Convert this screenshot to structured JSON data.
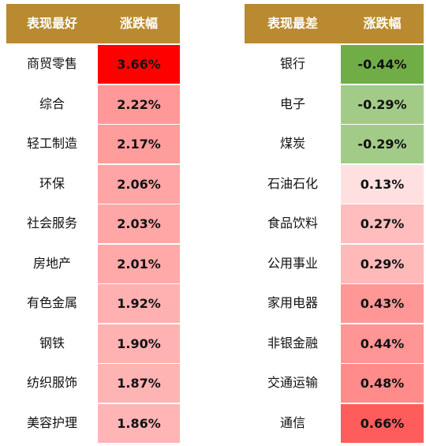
{
  "chart_data": [
    {
      "type": "table",
      "title": "",
      "columns": [
        "表现最好",
        "涨跌幅"
      ],
      "rows": [
        {
          "name": "商贸零售",
          "value": 3.66,
          "label": "3.66%",
          "color": "#ff0000"
        },
        {
          "name": "综合",
          "value": 2.22,
          "label": "2.22%",
          "color": "#ff9999"
        },
        {
          "name": "轻工制造",
          "value": 2.17,
          "label": "2.17%",
          "color": "#ff9c9c"
        },
        {
          "name": "环保",
          "value": 2.06,
          "label": "2.06%",
          "color": "#ffa5a5"
        },
        {
          "name": "社会服务",
          "value": 2.03,
          "label": "2.03%",
          "color": "#ffa7a7"
        },
        {
          "name": "房地产",
          "value": 2.01,
          "label": "2.01%",
          "color": "#ffa9a9"
        },
        {
          "name": "有色金属",
          "value": 1.92,
          "label": "1.92%",
          "color": "#ffb0b0"
        },
        {
          "name": "钢铁",
          "value": 1.9,
          "label": "1.90%",
          "color": "#ffb2b2"
        },
        {
          "name": "纺织服饰",
          "value": 1.87,
          "label": "1.87%",
          "color": "#ffb4b4"
        },
        {
          "name": "美容护理",
          "value": 1.86,
          "label": "1.86%",
          "color": "#ffb5b5"
        }
      ]
    },
    {
      "type": "table",
      "title": "",
      "columns": [
        "表现最差",
        "涨跌幅"
      ],
      "rows": [
        {
          "name": "银行",
          "value": -0.44,
          "label": "-0.44%",
          "color": "#71ad47"
        },
        {
          "name": "电子",
          "value": -0.29,
          "label": "-0.29%",
          "color": "#a2cb88"
        },
        {
          "name": "煤炭",
          "value": -0.29,
          "label": "-0.29%",
          "color": "#a2cb88"
        },
        {
          "name": "石油石化",
          "value": 0.13,
          "label": "0.13%",
          "color": "#ffe0e0"
        },
        {
          "name": "食品饮料",
          "value": 0.27,
          "label": "0.27%",
          "color": "#ffbdbd"
        },
        {
          "name": "公用事业",
          "value": 0.29,
          "label": "0.29%",
          "color": "#ffb9b9"
        },
        {
          "name": "家用电器",
          "value": 0.43,
          "label": "0.43%",
          "color": "#ff9797"
        },
        {
          "name": "非银金融",
          "value": 0.44,
          "label": "0.44%",
          "color": "#ff9595"
        },
        {
          "name": "交通运输",
          "value": 0.48,
          "label": "0.48%",
          "color": "#ff8b8b"
        },
        {
          "name": "通信",
          "value": 0.66,
          "label": "0.66%",
          "color": "#ff5c5c"
        }
      ]
    }
  ],
  "colors": {
    "header_bg": "#b98a2f",
    "header_text": "#ffffff"
  }
}
